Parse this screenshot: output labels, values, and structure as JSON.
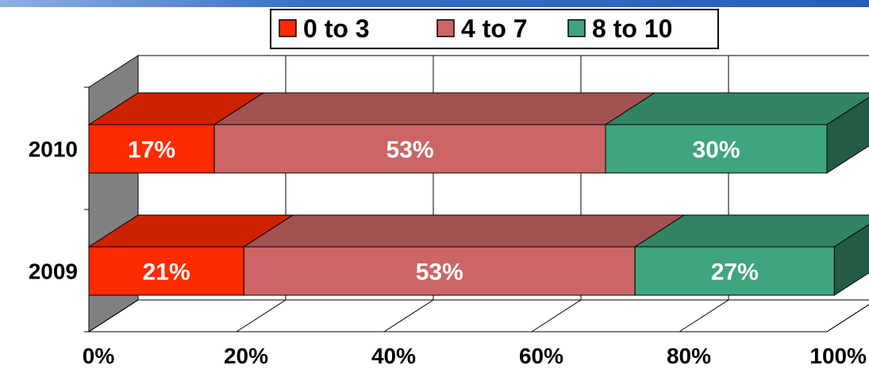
{
  "chart_data": {
    "type": "bar",
    "orientation": "horizontal",
    "stacked": "percent",
    "three_d": true,
    "categories": [
      "2010",
      "2009"
    ],
    "series": [
      {
        "name": "0 to 3",
        "color": "#ff2a00",
        "values": [
          17,
          21
        ],
        "labels": [
          "17%",
          "21%"
        ]
      },
      {
        "name": "4 to 7",
        "color": "#cc6666",
        "values": [
          53,
          53
        ],
        "labels": [
          "53%",
          "53%"
        ]
      },
      {
        "name": "8 to 10",
        "color": "#3fa57c",
        "values": [
          30,
          27
        ],
        "labels": [
          "30%",
          "27%"
        ]
      }
    ],
    "x_ticks": [
      "0%",
      "20%",
      "40%",
      "60%",
      "80%",
      "100%"
    ],
    "xlim": [
      0,
      100
    ],
    "grid": true,
    "legend_position": "top"
  },
  "colors": {
    "header_stripe": "#3a6fc4",
    "wall": "#808080",
    "value_label": "#ffffff"
  }
}
